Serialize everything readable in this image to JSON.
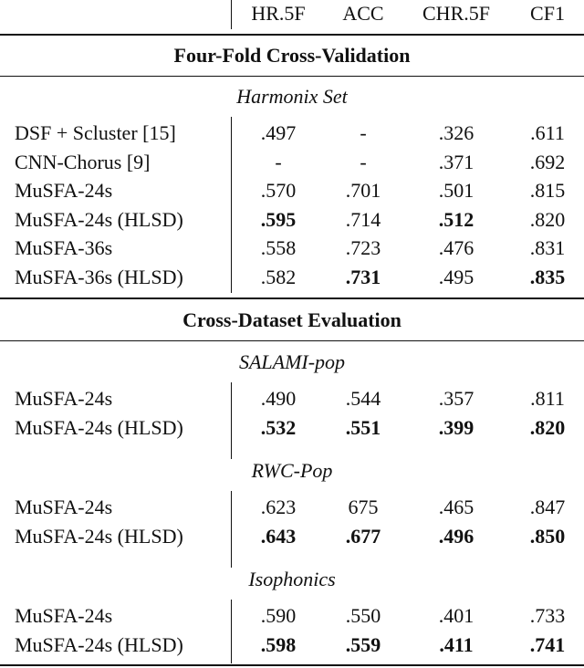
{
  "table": {
    "columns": [
      "HR.5F",
      "ACC",
      "CHR.5F",
      "CF1"
    ],
    "sections": [
      {
        "title": "Four-Fold Cross-Validation",
        "groups": [
          {
            "name": "Harmonix Set",
            "rows": [
              {
                "label": "DSF + Scluster [15]",
                "cells": [
                  ".497",
                  "-",
                  ".326",
                  ".611"
                ],
                "bold": []
              },
              {
                "label": "CNN-Chorus [9]",
                "cells": [
                  "-",
                  "-",
                  ".371",
                  ".692"
                ],
                "bold": []
              },
              {
                "label": "MuSFA-24s",
                "cells": [
                  ".570",
                  ".701",
                  ".501",
                  ".815"
                ],
                "bold": []
              },
              {
                "label": "MuSFA-24s (HLSD)",
                "cells": [
                  ".595",
                  ".714",
                  ".512",
                  ".820"
                ],
                "bold": [
                  0,
                  2
                ]
              },
              {
                "label": "MuSFA-36s",
                "cells": [
                  ".558",
                  ".723",
                  ".476",
                  ".831"
                ],
                "bold": []
              },
              {
                "label": "MuSFA-36s (HLSD)",
                "cells": [
                  ".582",
                  ".731",
                  ".495",
                  ".835"
                ],
                "bold": [
                  1,
                  3
                ]
              }
            ]
          }
        ]
      },
      {
        "title": "Cross-Dataset Evaluation",
        "groups": [
          {
            "name": "SALAMI-pop",
            "rows": [
              {
                "label": "MuSFA-24s",
                "cells": [
                  ".490",
                  ".544",
                  ".357",
                  ".811"
                ],
                "bold": []
              },
              {
                "label": "MuSFA-24s (HLSD)",
                "cells": [
                  ".532",
                  ".551",
                  ".399",
                  ".820"
                ],
                "bold": [
                  0,
                  1,
                  2,
                  3
                ]
              }
            ]
          },
          {
            "name": "RWC-Pop",
            "rows": [
              {
                "label": "MuSFA-24s",
                "cells": [
                  ".623",
                  "675",
                  ".465",
                  ".847"
                ],
                "bold": []
              },
              {
                "label": "MuSFA-24s (HLSD)",
                "cells": [
                  ".643",
                  ".677",
                  ".496",
                  ".850"
                ],
                "bold": [
                  0,
                  1,
                  2,
                  3
                ]
              }
            ]
          },
          {
            "name": "Isophonics",
            "rows": [
              {
                "label": "MuSFA-24s",
                "cells": [
                  ".590",
                  ".550",
                  ".401",
                  ".733"
                ],
                "bold": []
              },
              {
                "label": "MuSFA-24s (HLSD)",
                "cells": [
                  ".598",
                  ".559",
                  ".411",
                  ".741"
                ],
                "bold": [
                  0,
                  1,
                  2,
                  3
                ]
              }
            ]
          }
        ]
      }
    ]
  }
}
